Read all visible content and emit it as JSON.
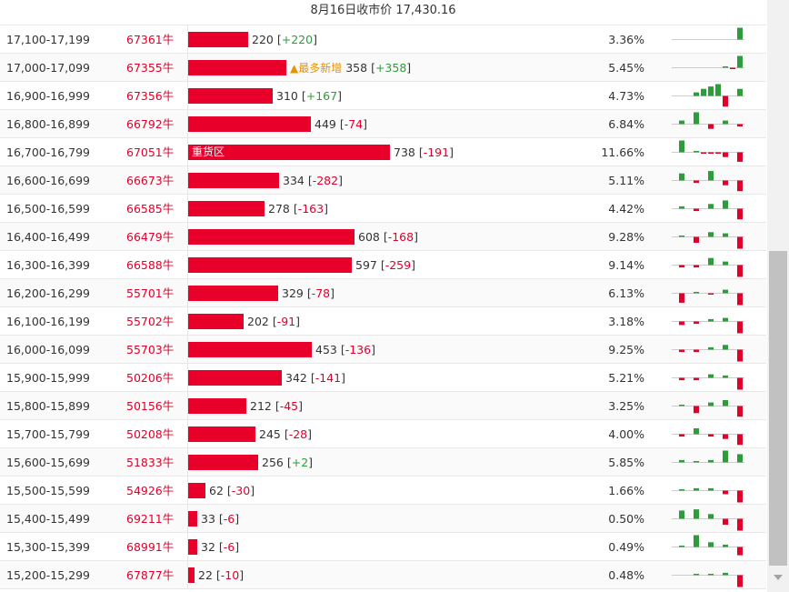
{
  "header": {
    "title": "8月16日收市价 17,430.16"
  },
  "colors": {
    "bar": "#e8002a",
    "positive": "#2e9c3b",
    "negative": "#e0002a",
    "tag": "#e89400"
  },
  "rows": [
    {
      "range": "17,100-17,199",
      "code": "67361牛",
      "volume": 220,
      "change": "+220",
      "pct": "3.36%",
      "spark": [
        0,
        0,
        0,
        0,
        0,
        0,
        0,
        0,
        0,
        1.0
      ]
    },
    {
      "range": "17,000-17,099",
      "code": "67355牛",
      "volume": 358,
      "change": "+358",
      "pct": "5.45%",
      "tag": "▲最多新增",
      "spark": [
        0,
        0,
        0,
        0,
        0,
        0,
        0,
        0.1,
        -0.1,
        1.0
      ]
    },
    {
      "range": "16,900-16,999",
      "code": "67356牛",
      "volume": 310,
      "change": "+167",
      "pct": "4.73%",
      "spark": [
        0,
        0,
        0,
        0.3,
        0.6,
        0.8,
        1.0,
        -0.9,
        0,
        0.6
      ]
    },
    {
      "range": "16,800-16,899",
      "code": "66792牛",
      "volume": 449,
      "change": "-74",
      "pct": "6.84%",
      "spark": [
        0,
        0.3,
        0,
        1.0,
        0,
        -0.4,
        0,
        0.3,
        0,
        -0.2
      ]
    },
    {
      "range": "16,700-16,799",
      "code": "67051牛",
      "volume": 738,
      "change": "-191",
      "pct": "11.66%",
      "bartext": "重货区",
      "spark": [
        0,
        1.0,
        0,
        0.1,
        -0.1,
        -0.1,
        -0.1,
        -0.4,
        0,
        -0.8
      ]
    },
    {
      "range": "16,600-16,699",
      "code": "66673牛",
      "volume": 334,
      "change": "-282",
      "pct": "5.11%",
      "spark": [
        0,
        0.6,
        0,
        -0.2,
        0,
        0.8,
        0,
        -0.4,
        0,
        -0.9
      ]
    },
    {
      "range": "16,500-16,599",
      "code": "66585牛",
      "volume": 278,
      "change": "-163",
      "pct": "4.42%",
      "spark": [
        0,
        0.2,
        0,
        -0.2,
        0,
        0.4,
        0,
        0.7,
        0,
        -0.9
      ]
    },
    {
      "range": "16,400-16,499",
      "code": "66479牛",
      "volume": 608,
      "change": "-168",
      "pct": "9.28%",
      "spark": [
        0,
        0.1,
        0,
        -0.5,
        0,
        0.4,
        0,
        0.3,
        0,
        -1.0
      ]
    },
    {
      "range": "16,300-16,399",
      "code": "66588牛",
      "volume": 597,
      "change": "-259",
      "pct": "9.14%",
      "spark": [
        0,
        -0.2,
        0,
        -0.2,
        0,
        0.6,
        0,
        0.3,
        0,
        -1.0
      ]
    },
    {
      "range": "16,200-16,299",
      "code": "55701牛",
      "volume": 329,
      "change": "-78",
      "pct": "6.13%",
      "spark": [
        0,
        -0.8,
        0,
        0.1,
        0,
        -0.1,
        0,
        0.3,
        0,
        -1.0
      ]
    },
    {
      "range": "16,100-16,199",
      "code": "55702牛",
      "volume": 202,
      "change": "-91",
      "pct": "3.18%",
      "spark": [
        0,
        -0.3,
        0,
        -0.2,
        0,
        0.2,
        0,
        0.3,
        0,
        -1.0
      ]
    },
    {
      "range": "16,000-16,099",
      "code": "55703牛",
      "volume": 453,
      "change": "-136",
      "pct": "9.25%",
      "spark": [
        0,
        -0.2,
        0,
        -0.2,
        0,
        0.2,
        0,
        0.4,
        0,
        -1.0
      ]
    },
    {
      "range": "15,900-15,999",
      "code": "50206牛",
      "volume": 342,
      "change": "-141",
      "pct": "5.21%",
      "spark": [
        0,
        -0.2,
        0,
        -0.2,
        0,
        0.3,
        0,
        0.2,
        0,
        -1.0
      ]
    },
    {
      "range": "15,800-15,899",
      "code": "50156牛",
      "volume": 212,
      "change": "-45",
      "pct": "3.25%",
      "spark": [
        0,
        0.1,
        0,
        -0.6,
        0,
        0.3,
        0,
        0.5,
        0,
        -0.9
      ]
    },
    {
      "range": "15,700-15,799",
      "code": "50208牛",
      "volume": 245,
      "change": "-28",
      "pct": "4.00%",
      "spark": [
        0,
        -0.2,
        0,
        0.5,
        0,
        -0.2,
        0,
        -0.4,
        0,
        -0.9
      ]
    },
    {
      "range": "15,600-15,699",
      "code": "51833牛",
      "volume": 256,
      "change": "+2",
      "pct": "5.85%",
      "spark": [
        0,
        0.2,
        0,
        0.1,
        0,
        0.2,
        0,
        1.0,
        0,
        0.7
      ]
    },
    {
      "range": "15,500-15,599",
      "code": "54926牛",
      "volume": 62,
      "change": "-30",
      "pct": "1.66%",
      "spark": [
        0,
        0.1,
        0,
        0.2,
        0,
        0.2,
        0,
        -0.3,
        0,
        -1.0
      ]
    },
    {
      "range": "15,400-15,499",
      "code": "69211牛",
      "volume": 33,
      "change": "-6",
      "pct": "0.50%",
      "spark": [
        0,
        0.7,
        0,
        0.8,
        0,
        0.4,
        0,
        -0.5,
        0,
        -1.0
      ]
    },
    {
      "range": "15,300-15,399",
      "code": "68991牛",
      "volume": 32,
      "change": "-6",
      "pct": "0.49%",
      "spark": [
        0,
        0.1,
        0,
        1.0,
        0,
        0.4,
        0,
        0.2,
        0,
        -0.7
      ]
    },
    {
      "range": "15,200-15,299",
      "code": "67877牛",
      "volume": 22,
      "change": "-10",
      "pct": "0.48%",
      "spark": [
        0,
        0,
        0,
        0.1,
        0,
        0.1,
        0,
        0.2,
        0,
        -1.0
      ]
    }
  ]
}
